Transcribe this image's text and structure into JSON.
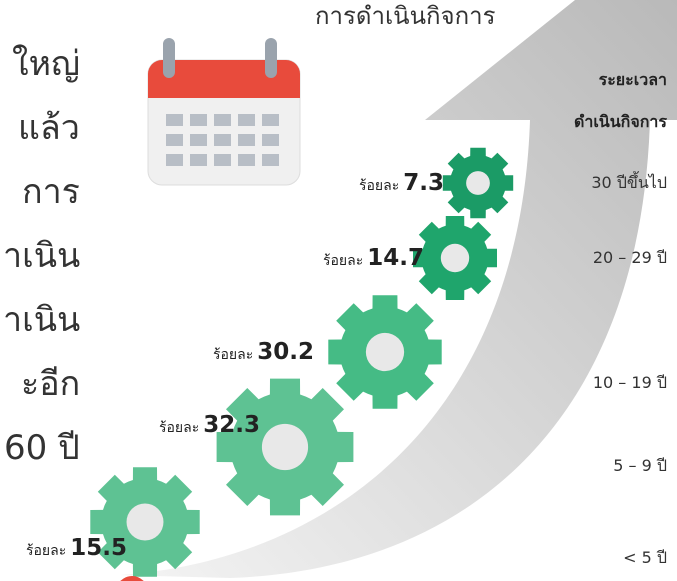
{
  "side_text": [
    "ใหญ่",
    "แล้ว",
    "การ",
    "าเนิน",
    "าเนิน",
    "ะอีก",
    "60 ปี"
  ],
  "title": "การดำเนินกิจการ",
  "period_header": [
    "ระยะเวลา",
    "ดำเนินกิจการ"
  ],
  "items": [
    {
      "prefix": "ร้อยละ",
      "value": 7.3,
      "period": "30 ปีขึ้นไป"
    },
    {
      "prefix": "ร้อยละ",
      "value": 14.7,
      "period": "20 – 29 ปี"
    },
    {
      "prefix": "ร้อยละ",
      "value": 30.2,
      "period": "10 – 19 ปี"
    },
    {
      "prefix": "ร้อยละ",
      "value": 32.3,
      "period": "5 – 9 ปี"
    },
    {
      "prefix": "ร้อยละ",
      "value": 15.5,
      "period": "< 5 ปี"
    }
  ]
}
